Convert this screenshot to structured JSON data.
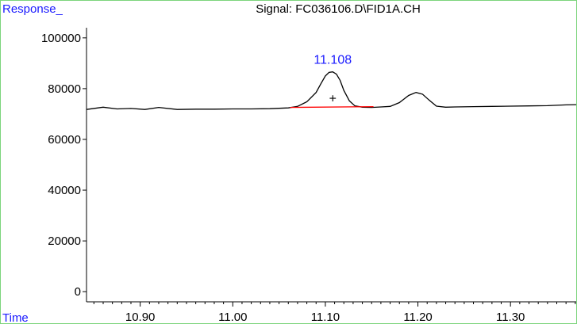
{
  "chart_data": {
    "type": "line",
    "title": "Signal: FC036106.D\\FID1A.CH",
    "ylabel": "Response_",
    "xlabel": "Time",
    "xlim": [
      10.842,
      11.371
    ],
    "ylim": [
      -4000,
      104000
    ],
    "y_ticks": [
      {
        "value": 0,
        "label": "0"
      },
      {
        "value": 20000,
        "label": "20000"
      },
      {
        "value": 40000,
        "label": "40000"
      },
      {
        "value": 60000,
        "label": "60000"
      },
      {
        "value": 80000,
        "label": "80000"
      },
      {
        "value": 100000,
        "label": "100000"
      }
    ],
    "x_ticks": [
      {
        "value": 10.9,
        "label": "10.90"
      },
      {
        "value": 11.0,
        "label": "11.00"
      },
      {
        "value": 11.1,
        "label": "11.10"
      },
      {
        "value": 11.2,
        "label": "11.20"
      },
      {
        "value": 11.3,
        "label": "11.30"
      }
    ],
    "grid": false,
    "series": [
      {
        "color": "#000000",
        "x": [
          10.842,
          10.86,
          10.875,
          10.89,
          10.905,
          10.92,
          10.94,
          10.96,
          10.98,
          11.0,
          11.02,
          11.04,
          11.06,
          11.07,
          11.08,
          11.09,
          11.095,
          11.1,
          11.104,
          11.108,
          11.112,
          11.116,
          11.12,
          11.126,
          11.132,
          11.14,
          11.15,
          11.16,
          11.17,
          11.18,
          11.19,
          11.198,
          11.205,
          11.212,
          11.22,
          11.23,
          11.24,
          11.26,
          11.28,
          11.3,
          11.32,
          11.34,
          11.36,
          11.371
        ],
        "values": [
          71800,
          72700,
          72000,
          72200,
          71800,
          72600,
          71800,
          71900,
          71900,
          72000,
          72000,
          72100,
          72400,
          73000,
          74800,
          78500,
          81800,
          85000,
          86400,
          86600,
          85700,
          83200,
          79300,
          75200,
          73200,
          72700,
          72600,
          72800,
          73000,
          74500,
          77300,
          78500,
          77800,
          75500,
          73100,
          72700,
          72800,
          72900,
          73000,
          73100,
          73200,
          73300,
          73600,
          73700
        ]
      },
      {
        "color": "#ff0000",
        "x": [
          11.062,
          11.152
        ],
        "values": [
          72600,
          72900
        ]
      }
    ],
    "annotations": [
      {
        "text": "11.108",
        "x": 11.108,
        "y": 86600,
        "color": "#1a1aff"
      }
    ],
    "markers": [
      {
        "symbol": "+",
        "x": 11.108,
        "y": 76000
      }
    ]
  }
}
